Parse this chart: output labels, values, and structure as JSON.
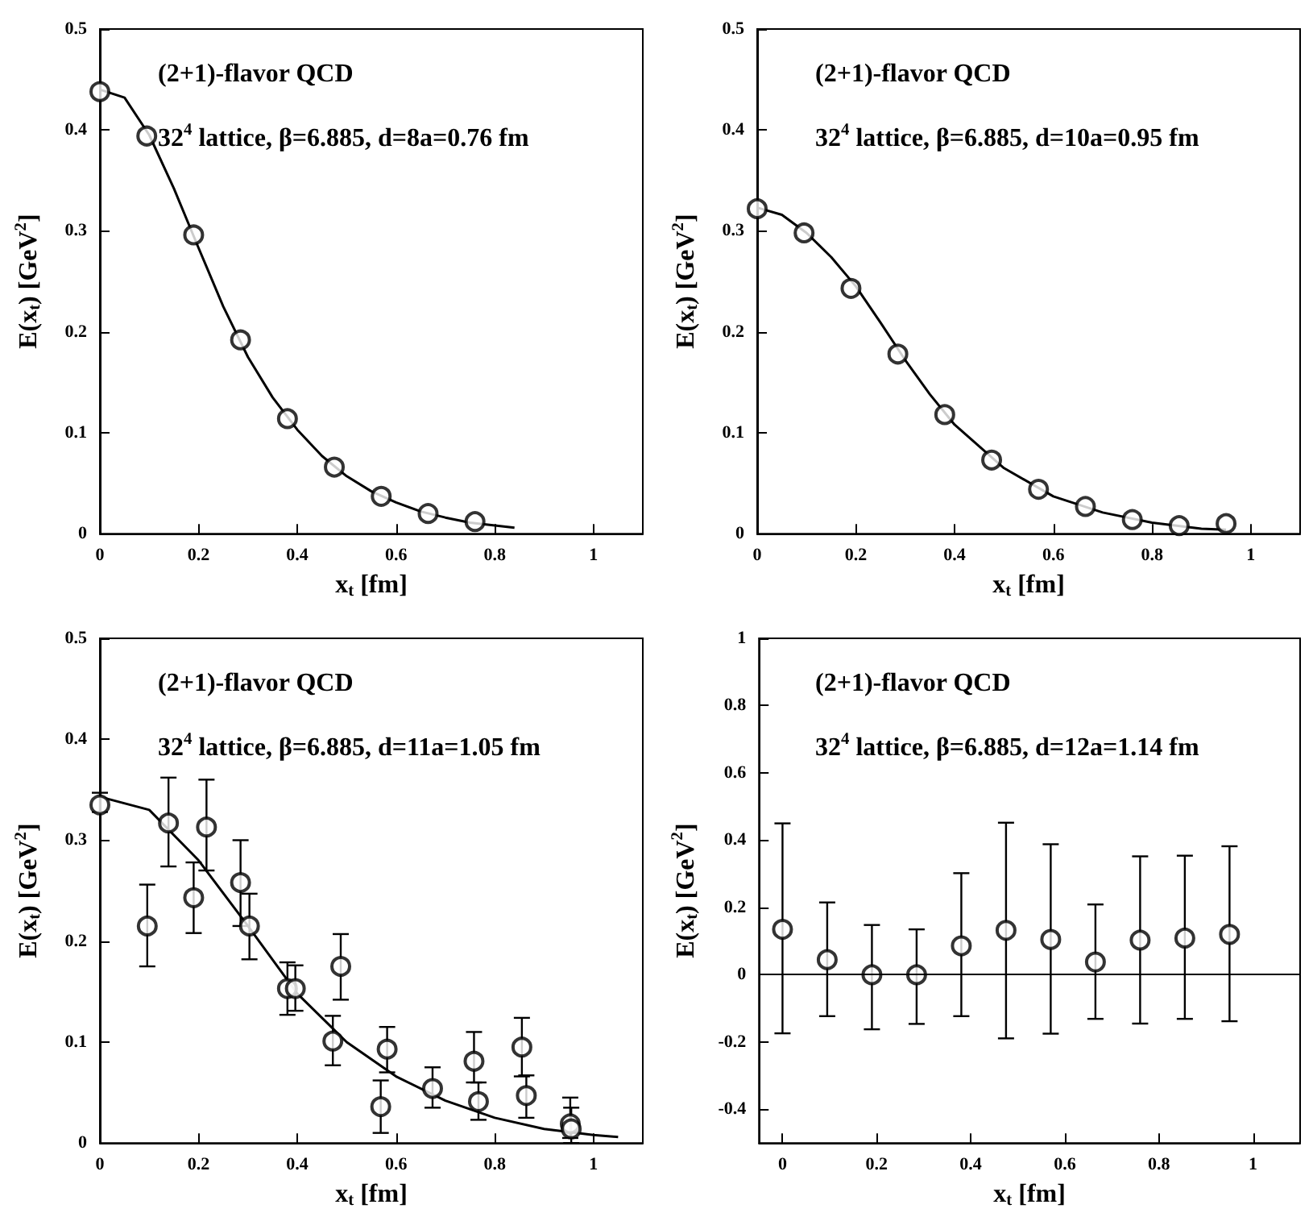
{
  "chart_data": [
    {
      "type": "scatter",
      "xlabel": "x$_{t}$ [fm]",
      "ylabel": "E(x$_{t}$) [GeV$^{2}$]",
      "annotations": [
        "(2+1)-flavor QCD",
        "32$^{4}$ lattice, β=6.885, d=8a=0.76 fm"
      ],
      "xlim": [
        0,
        1.1
      ],
      "ylim": [
        0,
        0.5
      ],
      "xticks": [
        0,
        0.2,
        0.4,
        0.6,
        0.8,
        1
      ],
      "yticks": [
        0,
        0.1,
        0.2,
        0.3,
        0.4,
        0.5
      ],
      "series": [
        {
          "color": "#000000",
          "marker": "circle",
          "x": [
            0,
            0.095,
            0.19,
            0.285,
            0.38,
            0.475,
            0.57,
            0.665,
            0.76
          ],
          "values": [
            0.438,
            0.394,
            0.296,
            0.192,
            0.114,
            0.066,
            0.037,
            0.02,
            0.012
          ]
        },
        {
          "type": "line",
          "color": "#000000",
          "marker": "none",
          "line_style": "solid",
          "x": [
            0,
            0.05,
            0.1,
            0.15,
            0.2,
            0.25,
            0.3,
            0.35,
            0.4,
            0.45,
            0.5,
            0.55,
            0.6,
            0.65,
            0.7,
            0.75,
            0.84
          ],
          "values": [
            0.44,
            0.432,
            0.395,
            0.342,
            0.283,
            0.225,
            0.175,
            0.135,
            0.103,
            0.077,
            0.057,
            0.042,
            0.031,
            0.022,
            0.016,
            0.011,
            0.006
          ]
        }
      ]
    },
    {
      "type": "scatter",
      "xlabel": "x$_{t}$ [fm]",
      "ylabel": "E(x$_{t}$) [GeV$^{2}$]",
      "annotations": [
        "(2+1)-flavor QCD",
        "32$^{4}$ lattice, β=6.885, d=10a=0.95 fm"
      ],
      "xlim": [
        0,
        1.1
      ],
      "ylim": [
        0,
        0.5
      ],
      "xticks": [
        0,
        0.2,
        0.4,
        0.6,
        0.8,
        1
      ],
      "yticks": [
        0,
        0.1,
        0.2,
        0.3,
        0.4,
        0.5
      ],
      "series": [
        {
          "color": "#000000",
          "marker": "circle",
          "x": [
            0,
            0.095,
            0.19,
            0.285,
            0.38,
            0.475,
            0.57,
            0.665,
            0.76,
            0.855,
            0.95
          ],
          "values": [
            0.322,
            0.298,
            0.243,
            0.178,
            0.118,
            0.073,
            0.044,
            0.027,
            0.014,
            0.008,
            0.01
          ]
        },
        {
          "type": "line",
          "color": "#000000",
          "marker": "none",
          "line_style": "solid",
          "x": [
            0,
            0.05,
            0.1,
            0.15,
            0.2,
            0.25,
            0.3,
            0.35,
            0.4,
            0.5,
            0.6,
            0.7,
            0.8,
            0.9,
            0.95
          ],
          "values": [
            0.323,
            0.316,
            0.298,
            0.274,
            0.245,
            0.209,
            0.172,
            0.138,
            0.108,
            0.065,
            0.037,
            0.021,
            0.011,
            0.005,
            0.004
          ]
        }
      ]
    },
    {
      "type": "scatter",
      "xlabel": "x$_{t}$ [fm]",
      "ylabel": "E(x$_{t}$) [GeV$^{2}$]",
      "annotations": [
        "(2+1)-flavor QCD",
        "32$^{4}$ lattice, β=6.885, d=11a=1.05 fm"
      ],
      "xlim": [
        0,
        1.1
      ],
      "ylim": [
        0,
        0.5
      ],
      "xticks": [
        0,
        0.2,
        0.4,
        0.6,
        0.8,
        1
      ],
      "yticks": [
        0,
        0.1,
        0.2,
        0.3,
        0.4,
        0.5
      ],
      "series": [
        {
          "color": "#000000",
          "marker": "circle",
          "x": [
            0,
            0.096,
            0.139,
            0.19,
            0.216,
            0.285,
            0.303,
            0.38,
            0.396,
            0.472,
            0.488,
            0.569,
            0.582,
            0.674,
            0.758,
            0.767,
            0.855,
            0.864,
            0.953,
            0.955
          ],
          "values": [
            0.335,
            0.215,
            0.317,
            0.243,
            0.313,
            0.258,
            0.215,
            0.153,
            0.153,
            0.101,
            0.175,
            0.036,
            0.093,
            0.054,
            0.081,
            0.041,
            0.095,
            0.047,
            0.019,
            0.014
          ],
          "errors": [
            [
              0.328,
              0.347
            ],
            [
              0.175,
              0.256
            ],
            [
              0.274,
              0.362
            ],
            [
              0.208,
              0.278
            ],
            [
              0.27,
              0.36
            ],
            [
              0.215,
              0.3
            ],
            [
              0.182,
              0.247
            ],
            [
              0.127,
              0.179
            ],
            [
              0.131,
              0.176
            ],
            [
              0.077,
              0.126
            ],
            [
              0.142,
              0.207
            ],
            [
              0.01,
              0.062
            ],
            [
              0.07,
              0.115
            ],
            [
              0.035,
              0.075
            ],
            [
              0.06,
              0.11
            ],
            [
              0.023,
              0.06
            ],
            [
              0.066,
              0.124
            ],
            [
              0.025,
              0.067
            ],
            [
              0.005,
              0.045
            ],
            [
              0.0,
              0.035
            ]
          ]
        },
        {
          "type": "line",
          "color": "#000000",
          "marker": "none",
          "line_style": "solid",
          "x": [
            0,
            0.1,
            0.2,
            0.3,
            0.4,
            0.5,
            0.6,
            0.7,
            0.8,
            0.9,
            1.0,
            1.05
          ],
          "values": [
            0.343,
            0.33,
            0.28,
            0.215,
            0.148,
            0.1,
            0.066,
            0.042,
            0.025,
            0.014,
            0.008,
            0.006
          ]
        }
      ]
    },
    {
      "type": "scatter",
      "xlabel": "x$_{t}$ [fm]",
      "ylabel": "E(x$_{t}$) [GeV$^{2}$]",
      "annotations": [
        "(2+1)-flavor QCD",
        "32$^{4}$ lattice, β=6.885, d=12a=1.14 fm"
      ],
      "xlim": [
        -0.05,
        1.1
      ],
      "ylim": [
        -0.5,
        1
      ],
      "xticks": [
        0,
        0.2,
        0.4,
        0.6,
        0.8,
        1
      ],
      "yticks": [
        -0.4,
        -0.2,
        0,
        0.2,
        0.4,
        0.6,
        0.8,
        1
      ],
      "ref_lines": [
        {
          "axis": "y",
          "value": 0,
          "color": "#000000",
          "line_style": "solid"
        }
      ],
      "series": [
        {
          "color": "#000000",
          "marker": "circle",
          "x": [
            0,
            0.095,
            0.19,
            0.285,
            0.38,
            0.475,
            0.57,
            0.665,
            0.76,
            0.855,
            0.95
          ],
          "values": [
            0.135,
            0.045,
            0,
            0,
            0.086,
            0.132,
            0.105,
            0.038,
            0.103,
            0.109,
            0.12
          ],
          "errors": [
            [
              -0.174,
              0.45
            ],
            [
              -0.123,
              0.215
            ],
            [
              -0.162,
              0.148
            ],
            [
              -0.146,
              0.135
            ],
            [
              -0.123,
              0.302
            ],
            [
              -0.189,
              0.452
            ],
            [
              -0.175,
              0.388
            ],
            [
              -0.131,
              0.209
            ],
            [
              -0.145,
              0.352
            ],
            [
              -0.131,
              0.354
            ],
            [
              -0.138,
              0.382
            ]
          ]
        }
      ]
    }
  ]
}
